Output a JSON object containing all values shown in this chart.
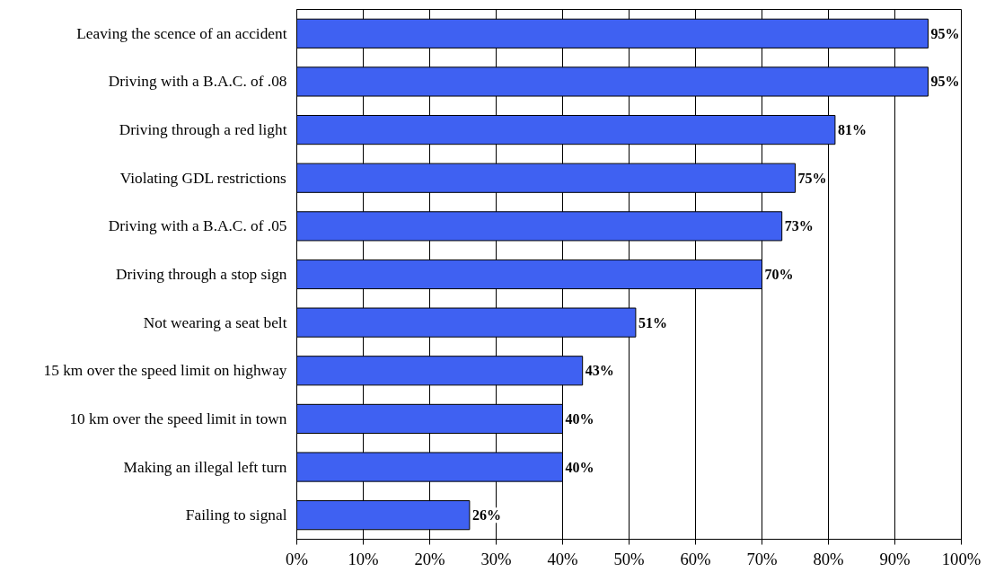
{
  "chart_data": {
    "type": "bar",
    "orientation": "horizontal",
    "categories": [
      "Leaving the scence of an accident",
      "Driving with a B.A.C. of .08",
      "Driving through a red light",
      "Violating GDL restrictions",
      "Driving with a B.A.C. of .05",
      "Driving through a stop sign",
      "Not wearing a seat belt",
      "15 km over the speed limit on highway",
      "10 km over the speed limit in town",
      "Making an illegal left turn",
      "Failing to signal"
    ],
    "values": [
      95,
      95,
      81,
      75,
      73,
      70,
      51,
      43,
      40,
      40,
      26
    ],
    "value_labels": [
      "95%",
      "95%",
      "81%",
      "75%",
      "73%",
      "70%",
      "51%",
      "43%",
      "40%",
      "40%",
      "26%"
    ],
    "color": "#3f61f2",
    "xlim": [
      0,
      100
    ],
    "xticks": [
      {
        "value": 0,
        "label": "0%"
      },
      {
        "value": 10,
        "label": "10%"
      },
      {
        "value": 20,
        "label": "20%"
      },
      {
        "value": 30,
        "label": "30%"
      },
      {
        "value": 40,
        "label": "40%"
      },
      {
        "value": 50,
        "label": "50%"
      },
      {
        "value": 60,
        "label": "60%"
      },
      {
        "value": 70,
        "label": "70%"
      },
      {
        "value": 80,
        "label": "80%"
      },
      {
        "value": 90,
        "label": "90%"
      },
      {
        "value": 100,
        "label": "100%"
      }
    ],
    "grid": "x"
  }
}
